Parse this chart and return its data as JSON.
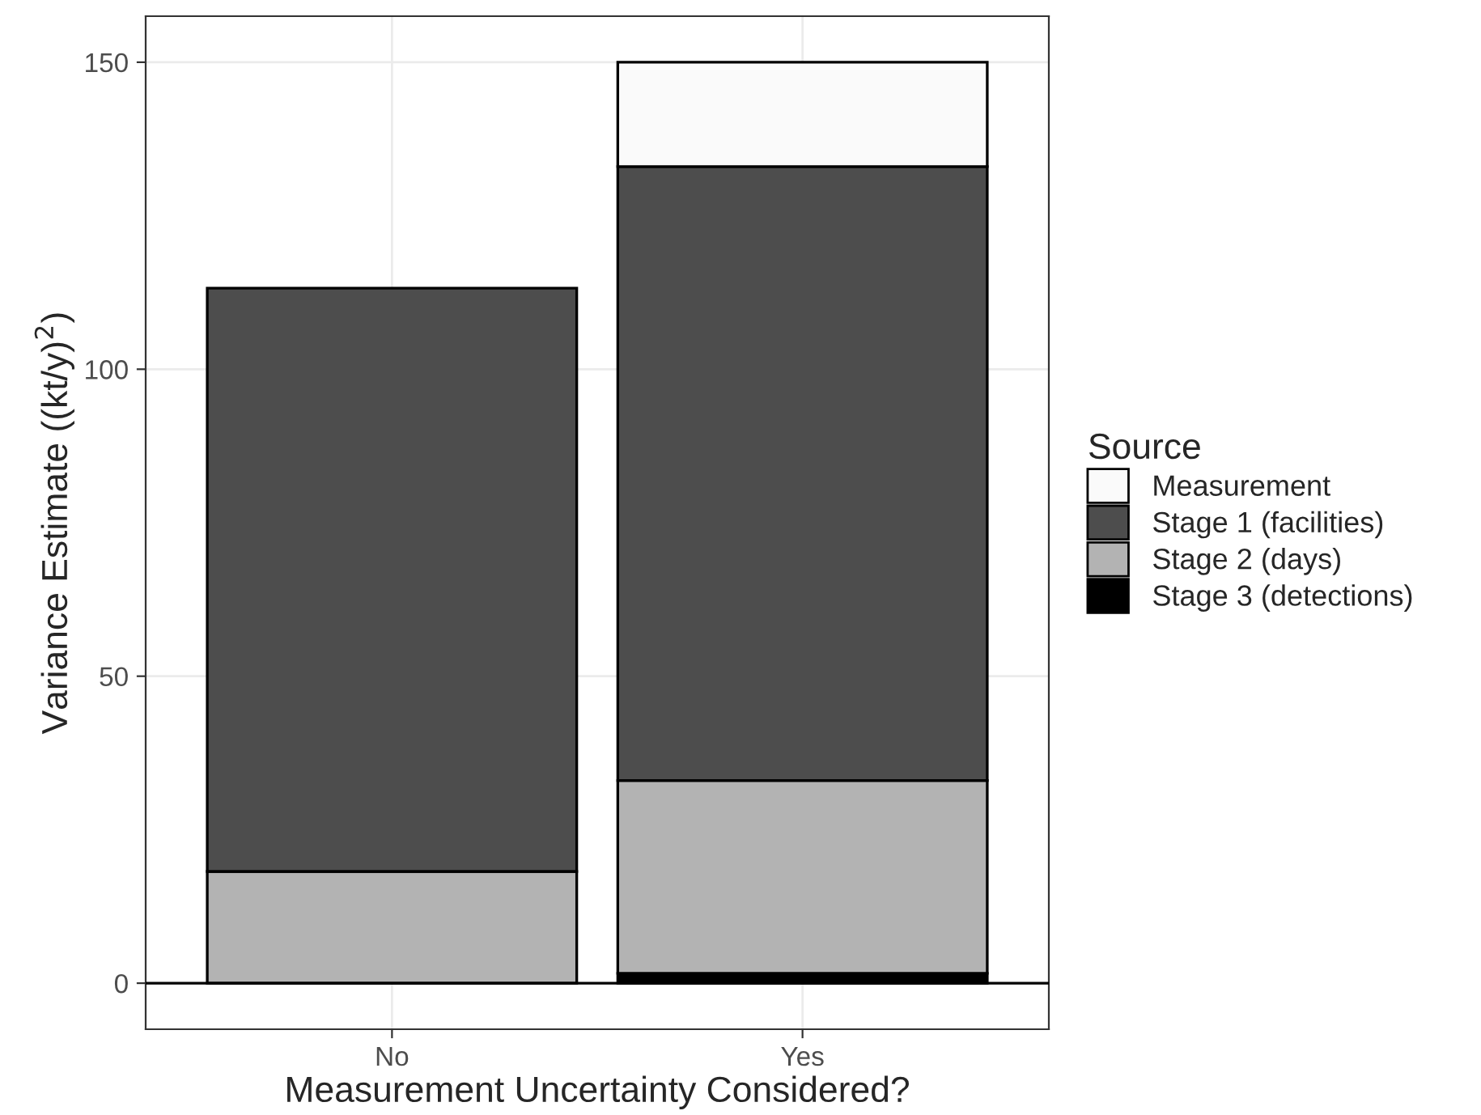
{
  "chart_data": {
    "type": "bar",
    "stacked": true,
    "xlabel": "Measurement Uncertainty Considered?",
    "ylabel": "Variance Estimate ((kt/y)$^{2}$)",
    "legend_title": "Source",
    "legend": "right",
    "grid": true,
    "categories": [
      "No",
      "Yes"
    ],
    "series": [
      {
        "name": "Stage 3 (detections)",
        "color": "#000000",
        "values": [
          null,
          1.6
        ]
      },
      {
        "name": "Stage 2 (days)",
        "color": "#b3b3b3",
        "values": [
          18.2,
          31.4
        ]
      },
      {
        "name": "Stage 1 (facilities)",
        "color": "#4d4d4d",
        "values": [
          95,
          100
        ]
      },
      {
        "name": "Measurement",
        "color": "#fafafa",
        "values": [
          null,
          17
        ]
      }
    ],
    "ylim": [
      -7.5,
      157.5
    ],
    "yticks": [
      0,
      50,
      100,
      150
    ]
  }
}
